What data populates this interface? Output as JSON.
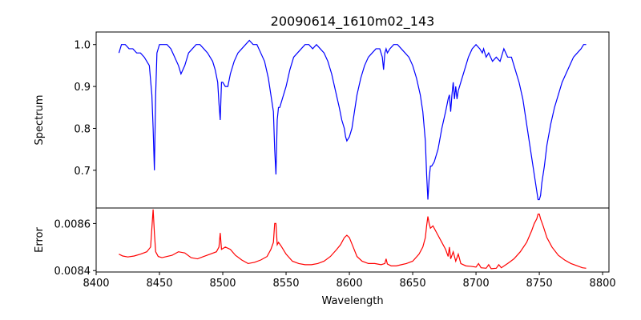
{
  "figure_title": "20090614_1610m02_143",
  "chart_data": [
    {
      "type": "line",
      "panel": "spectrum",
      "title": "20090614_1610m02_143",
      "xlabel": "",
      "ylabel": "Spectrum",
      "xlim": [
        8400,
        8805
      ],
      "ylim": [
        0.61,
        1.03
      ],
      "yticks": [
        0.7,
        0.8,
        0.9,
        1.0
      ],
      "ytick_labels": [
        "0.7",
        "0.8",
        "0.9",
        "1.0"
      ],
      "color": "#0000ff",
      "series": [
        {
          "name": "Spectrum",
          "x": [
            8418,
            8420,
            8423,
            8426,
            8429,
            8432,
            8435,
            8438,
            8440,
            8442,
            8444,
            8445,
            8446,
            8447,
            8448,
            8450,
            8453,
            8456,
            8459,
            8462,
            8465,
            8467,
            8470,
            8473,
            8476,
            8479,
            8482,
            8485,
            8488,
            8490,
            8492,
            8494,
            8496,
            8497,
            8498,
            8499,
            8500,
            8502,
            8504,
            8506,
            8509,
            8512,
            8515,
            8518,
            8521,
            8524,
            8527,
            8530,
            8533,
            8536,
            8538,
            8540,
            8541,
            8542,
            8543,
            8544,
            8545,
            8547,
            8550,
            8553,
            8556,
            8559,
            8562,
            8565,
            8568,
            8571,
            8574,
            8577,
            8580,
            8583,
            8586,
            8589,
            8592,
            8594,
            8596,
            8597,
            8598,
            8600,
            8602,
            8604,
            8606,
            8609,
            8612,
            8615,
            8618,
            8621,
            8624,
            8626,
            8627,
            8628,
            8629,
            8630,
            8632,
            8635,
            8638,
            8641,
            8644,
            8647,
            8650,
            8653,
            8656,
            8658,
            8660,
            8661,
            8662,
            8663,
            8664,
            8665,
            8667,
            8670,
            8673,
            8676,
            8678,
            8679,
            8680,
            8681,
            8682,
            8683,
            8684,
            8685,
            8686,
            8688,
            8691,
            8694,
            8697,
            8700,
            8703,
            8705,
            8706,
            8707,
            8708,
            8710,
            8713,
            8716,
            8719,
            8722,
            8725,
            8728,
            8731,
            8734,
            8737,
            8740,
            8743,
            8745,
            8747,
            8748,
            8749,
            8750,
            8751,
            8752,
            8754,
            8756,
            8759,
            8762,
            8765,
            8768,
            8771,
            8774,
            8777,
            8780,
            8783,
            8785,
            8787
          ],
          "values": [
            0.98,
            1.0,
            1.0,
            0.99,
            0.99,
            0.98,
            0.98,
            0.97,
            0.96,
            0.95,
            0.88,
            0.8,
            0.7,
            0.88,
            0.98,
            1.0,
            1.0,
            1.0,
            0.99,
            0.97,
            0.95,
            0.93,
            0.95,
            0.98,
            0.99,
            1.0,
            1.0,
            0.99,
            0.98,
            0.97,
            0.96,
            0.94,
            0.91,
            0.86,
            0.82,
            0.91,
            0.91,
            0.9,
            0.9,
            0.93,
            0.96,
            0.98,
            0.99,
            1.0,
            1.01,
            1.0,
            1.0,
            0.98,
            0.96,
            0.92,
            0.88,
            0.84,
            0.75,
            0.69,
            0.82,
            0.85,
            0.85,
            0.87,
            0.9,
            0.94,
            0.97,
            0.98,
            0.99,
            1.0,
            1.0,
            0.99,
            1.0,
            0.99,
            0.98,
            0.96,
            0.93,
            0.89,
            0.85,
            0.82,
            0.8,
            0.78,
            0.77,
            0.78,
            0.8,
            0.84,
            0.88,
            0.92,
            0.95,
            0.97,
            0.98,
            0.99,
            0.99,
            0.97,
            0.94,
            0.98,
            0.99,
            0.98,
            0.99,
            1.0,
            1.0,
            0.99,
            0.98,
            0.97,
            0.95,
            0.92,
            0.88,
            0.84,
            0.77,
            0.69,
            0.63,
            0.68,
            0.71,
            0.71,
            0.72,
            0.75,
            0.8,
            0.84,
            0.87,
            0.88,
            0.84,
            0.88,
            0.91,
            0.87,
            0.9,
            0.87,
            0.89,
            0.91,
            0.94,
            0.97,
            0.99,
            1.0,
            0.99,
            0.98,
            0.99,
            0.98,
            0.97,
            0.98,
            0.96,
            0.97,
            0.96,
            0.99,
            0.97,
            0.97,
            0.94,
            0.91,
            0.87,
            0.81,
            0.75,
            0.71,
            0.67,
            0.65,
            0.63,
            0.63,
            0.64,
            0.67,
            0.71,
            0.76,
            0.81,
            0.85,
            0.88,
            0.91,
            0.93,
            0.95,
            0.97,
            0.98,
            0.99,
            1.0,
            1.0
          ]
        }
      ]
    },
    {
      "type": "line",
      "panel": "error",
      "title": "",
      "xlabel": "Wavelength",
      "ylabel": "Error",
      "xlim": [
        8400,
        8805
      ],
      "ylim": [
        0.008394,
        0.008666
      ],
      "yticks": [
        0.0084,
        0.0086
      ],
      "ytick_labels": [
        "0.0084",
        "0.0086"
      ],
      "xticks": [
        8400,
        8450,
        8500,
        8550,
        8600,
        8650,
        8700,
        8750,
        8800
      ],
      "xtick_labels": [
        "8400",
        "8450",
        "8500",
        "8550",
        "8600",
        "8650",
        "8700",
        "8750",
        "8800"
      ],
      "color": "#ff0000",
      "series": [
        {
          "name": "Error",
          "x": [
            8418,
            8421,
            8425,
            8430,
            8435,
            8440,
            8443,
            8445,
            8446,
            8447,
            8449,
            8452,
            8456,
            8460,
            8465,
            8470,
            8475,
            8480,
            8485,
            8490,
            8495,
            8497,
            8498,
            8499,
            8502,
            8506,
            8510,
            8515,
            8520,
            8525,
            8530,
            8535,
            8538,
            8540,
            8541,
            8542,
            8543,
            8544,
            8546,
            8550,
            8555,
            8560,
            8565,
            8570,
            8575,
            8580,
            8585,
            8590,
            8593,
            8596,
            8598,
            8600,
            8603,
            8606,
            8610,
            8615,
            8620,
            8625,
            8628,
            8629,
            8630,
            8633,
            8637,
            8641,
            8645,
            8650,
            8655,
            8658,
            8660,
            8661,
            8662,
            8663,
            8664,
            8666,
            8668,
            8670,
            8673,
            8676,
            8678,
            8679,
            8680,
            8682,
            8684,
            8686,
            8688,
            8692,
            8696,
            8700,
            8702,
            8704,
            8708,
            8710,
            8712,
            8716,
            8718,
            8720,
            8725,
            8730,
            8735,
            8740,
            8744,
            8746,
            8748,
            8749,
            8750,
            8751,
            8753,
            8756,
            8760,
            8765,
            8770,
            8775,
            8780,
            8784,
            8787
          ],
          "values": [
            0.00847,
            0.008462,
            0.008458,
            0.008462,
            0.00847,
            0.00848,
            0.0085,
            0.00866,
            0.00856,
            0.00848,
            0.00846,
            0.008455,
            0.00846,
            0.008465,
            0.00848,
            0.008475,
            0.008455,
            0.00845,
            0.00846,
            0.00847,
            0.00848,
            0.0085,
            0.00856,
            0.00849,
            0.0085,
            0.00849,
            0.008465,
            0.008445,
            0.00843,
            0.008435,
            0.008445,
            0.00846,
            0.00849,
            0.00852,
            0.0086,
            0.0086,
            0.00851,
            0.00852,
            0.008505,
            0.00847,
            0.00844,
            0.00843,
            0.008425,
            0.008425,
            0.00843,
            0.00844,
            0.00846,
            0.00849,
            0.00851,
            0.00854,
            0.00855,
            0.00854,
            0.0085,
            0.00846,
            0.00844,
            0.00843,
            0.00843,
            0.008425,
            0.00843,
            0.00845,
            0.008428,
            0.00842,
            0.00842,
            0.008425,
            0.00843,
            0.00844,
            0.00847,
            0.0085,
            0.00854,
            0.00859,
            0.00863,
            0.0086,
            0.00858,
            0.00859,
            0.00857,
            0.00855,
            0.00852,
            0.00849,
            0.00846,
            0.0085,
            0.00845,
            0.00848,
            0.00844,
            0.00847,
            0.00843,
            0.00842,
            0.008418,
            0.008415,
            0.00843,
            0.008412,
            0.00841,
            0.008425,
            0.008408,
            0.00841,
            0.008425,
            0.008412,
            0.00843,
            0.00845,
            0.00848,
            0.00852,
            0.00857,
            0.0086,
            0.00862,
            0.00864,
            0.00864,
            0.00862,
            0.00859,
            0.00854,
            0.0085,
            0.008465,
            0.008445,
            0.00843,
            0.00842,
            0.008412,
            0.00841
          ]
        }
      ]
    }
  ]
}
